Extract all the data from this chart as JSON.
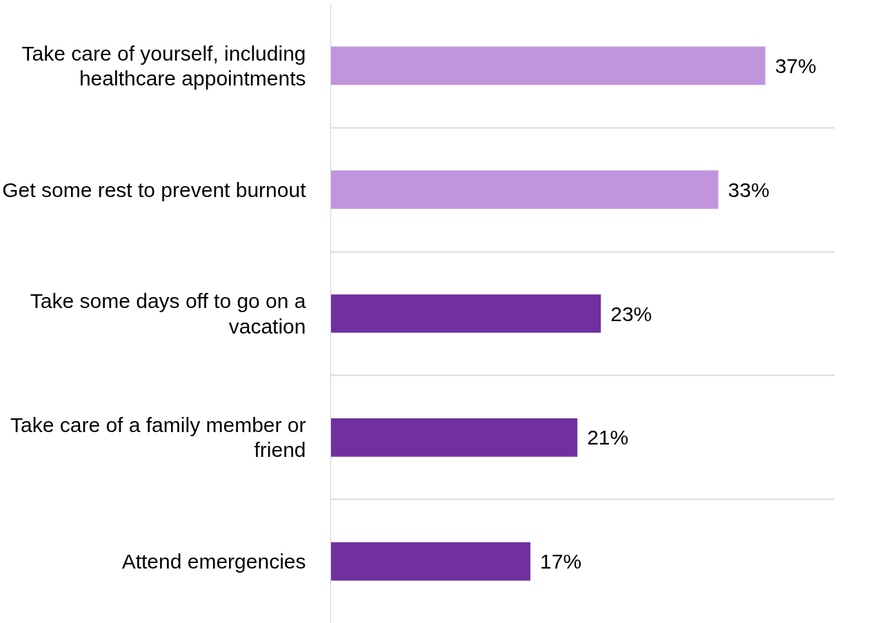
{
  "chart_data": {
    "type": "bar",
    "orientation": "horizontal",
    "categories": [
      "Take care of yourself, including healthcare appointments",
      "Get some rest to prevent burnout",
      "Take some days off to go on a vacation",
      "Take care of a family member or friend",
      "Attend emergencies"
    ],
    "values": [
      37,
      33,
      23,
      21,
      17
    ],
    "colors": [
      "#c195de",
      "#c195de",
      "#7030a0",
      "#7030a0",
      "#7030a0"
    ],
    "value_labels": [
      "37%",
      "33%",
      "23%",
      "21%",
      "17%"
    ],
    "grid": "y"
  }
}
